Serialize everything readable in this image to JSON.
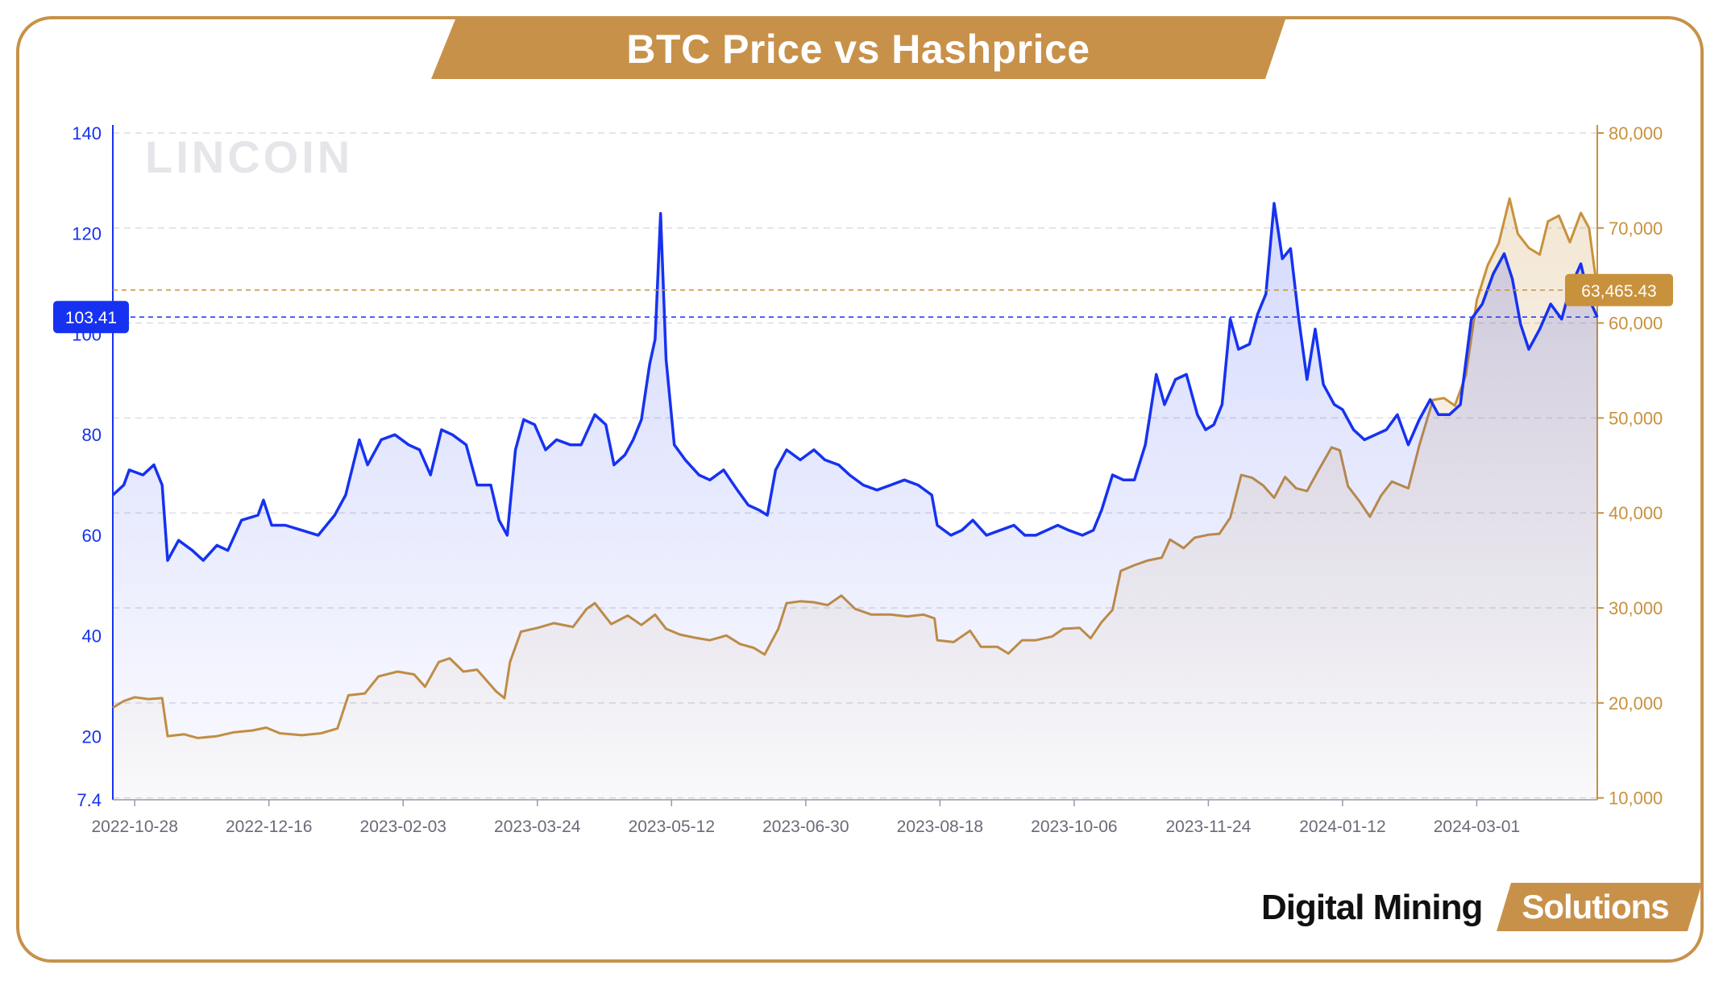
{
  "title": "BTC Price vs Hashprice",
  "watermark": "LINCOIN",
  "brand": {
    "main": "Digital Mining",
    "tag": "Solutions"
  },
  "colors": {
    "accent": "#c8914a",
    "blue": "#1632f0",
    "gold": "#c8913c"
  },
  "chart_data": {
    "type": "line",
    "x_ticks": [
      "2022-10-28",
      "2022-12-16",
      "2023-02-03",
      "2023-03-24",
      "2023-05-12",
      "2023-06-30",
      "2023-08-18",
      "2023-10-06",
      "2023-11-24",
      "2024-01-12",
      "2024-03-01"
    ],
    "x_range": [
      "2022-10-20",
      "2024-04-14"
    ],
    "y_left": {
      "ticks": [
        "140",
        "120",
        "100",
        "80",
        "60",
        "40",
        "20",
        "7.4"
      ],
      "tick_values": [
        140,
        120,
        100,
        80,
        60,
        40,
        20,
        7.4
      ],
      "range": [
        7.4,
        140
      ]
    },
    "y_right": {
      "ticks": [
        "80,000",
        "70,000",
        "60,000",
        "50,000",
        "40,000",
        "30,000",
        "20,000",
        "10,000"
      ],
      "tick_values": [
        80000,
        70000,
        60000,
        50000,
        40000,
        30000,
        20000,
        10000
      ],
      "range": [
        9800,
        80000
      ]
    },
    "grid": true,
    "series": [
      {
        "axis": "left",
        "color": "#1632f0",
        "last_value_label": "103.41",
        "last_value": 103.41,
        "points": [
          [
            "2022-10-20",
            68
          ],
          [
            "2022-10-24",
            70
          ],
          [
            "2022-10-26",
            73
          ],
          [
            "2022-10-31",
            72
          ],
          [
            "2022-11-04",
            74
          ],
          [
            "2022-11-07",
            70
          ],
          [
            "2022-11-09",
            55
          ],
          [
            "2022-11-13",
            59
          ],
          [
            "2022-11-18",
            57
          ],
          [
            "2022-11-22",
            55
          ],
          [
            "2022-11-27",
            58
          ],
          [
            "2022-12-01",
            57
          ],
          [
            "2022-12-06",
            63
          ],
          [
            "2022-12-12",
            64
          ],
          [
            "2022-12-14",
            67
          ],
          [
            "2022-12-17",
            62
          ],
          [
            "2022-12-22",
            62
          ],
          [
            "2022-12-28",
            61
          ],
          [
            "2023-01-03",
            60
          ],
          [
            "2023-01-09",
            64
          ],
          [
            "2023-01-13",
            68
          ],
          [
            "2023-01-18",
            79
          ],
          [
            "2023-01-21",
            74
          ],
          [
            "2023-01-26",
            79
          ],
          [
            "2023-01-31",
            80
          ],
          [
            "2023-02-05",
            78
          ],
          [
            "2023-02-09",
            77
          ],
          [
            "2023-02-13",
            72
          ],
          [
            "2023-02-17",
            81
          ],
          [
            "2023-02-21",
            80
          ],
          [
            "2023-02-26",
            78
          ],
          [
            "2023-03-02",
            70
          ],
          [
            "2023-03-07",
            70
          ],
          [
            "2023-03-10",
            63
          ],
          [
            "2023-03-13",
            60
          ],
          [
            "2023-03-16",
            77
          ],
          [
            "2023-03-19",
            83
          ],
          [
            "2023-03-23",
            82
          ],
          [
            "2023-03-27",
            77
          ],
          [
            "2023-03-31",
            79
          ],
          [
            "2023-04-05",
            78
          ],
          [
            "2023-04-09",
            78
          ],
          [
            "2023-04-14",
            84
          ],
          [
            "2023-04-18",
            82
          ],
          [
            "2023-04-21",
            74
          ],
          [
            "2023-04-25",
            76
          ],
          [
            "2023-04-28",
            79
          ],
          [
            "2023-05-01",
            83
          ],
          [
            "2023-05-04",
            94
          ],
          [
            "2023-05-06",
            99
          ],
          [
            "2023-05-08",
            124
          ],
          [
            "2023-05-10",
            95
          ],
          [
            "2023-05-13",
            78
          ],
          [
            "2023-05-17",
            75
          ],
          [
            "2023-05-22",
            72
          ],
          [
            "2023-05-26",
            71
          ],
          [
            "2023-05-31",
            73
          ],
          [
            "2023-06-05",
            69
          ],
          [
            "2023-06-09",
            66
          ],
          [
            "2023-06-13",
            65
          ],
          [
            "2023-06-16",
            64
          ],
          [
            "2023-06-19",
            73
          ],
          [
            "2023-06-23",
            77
          ],
          [
            "2023-06-28",
            75
          ],
          [
            "2023-07-03",
            77
          ],
          [
            "2023-07-07",
            75
          ],
          [
            "2023-07-12",
            74
          ],
          [
            "2023-07-16",
            72
          ],
          [
            "2023-07-21",
            70
          ],
          [
            "2023-07-26",
            69
          ],
          [
            "2023-07-31",
            70
          ],
          [
            "2023-08-05",
            71
          ],
          [
            "2023-08-10",
            70
          ],
          [
            "2023-08-15",
            68
          ],
          [
            "2023-08-17",
            62
          ],
          [
            "2023-08-22",
            60
          ],
          [
            "2023-08-26",
            61
          ],
          [
            "2023-08-30",
            63
          ],
          [
            "2023-09-04",
            60
          ],
          [
            "2023-09-09",
            61
          ],
          [
            "2023-09-14",
            62
          ],
          [
            "2023-09-18",
            60
          ],
          [
            "2023-09-22",
            60
          ],
          [
            "2023-09-26",
            61
          ],
          [
            "2023-09-30",
            62
          ],
          [
            "2023-10-04",
            61
          ],
          [
            "2023-10-09",
            60
          ],
          [
            "2023-10-13",
            61
          ],
          [
            "2023-10-16",
            65
          ],
          [
            "2023-10-20",
            72
          ],
          [
            "2023-10-24",
            71
          ],
          [
            "2023-10-28",
            71
          ],
          [
            "2023-11-01",
            78
          ],
          [
            "2023-11-05",
            92
          ],
          [
            "2023-11-08",
            86
          ],
          [
            "2023-11-12",
            91
          ],
          [
            "2023-11-16",
            92
          ],
          [
            "2023-11-20",
            84
          ],
          [
            "2023-11-23",
            81
          ],
          [
            "2023-11-26",
            82
          ],
          [
            "2023-11-29",
            86
          ],
          [
            "2023-12-02",
            103
          ],
          [
            "2023-12-05",
            97
          ],
          [
            "2023-12-09",
            98
          ],
          [
            "2023-12-12",
            104
          ],
          [
            "2023-12-15",
            108
          ],
          [
            "2023-12-18",
            126
          ],
          [
            "2023-12-21",
            115
          ],
          [
            "2023-12-24",
            117
          ],
          [
            "2023-12-27",
            103
          ],
          [
            "2023-12-30",
            91
          ],
          [
            "2024-01-02",
            101
          ],
          [
            "2024-01-05",
            90
          ],
          [
            "2024-01-09",
            86
          ],
          [
            "2024-01-12",
            85
          ],
          [
            "2024-01-16",
            81
          ],
          [
            "2024-01-20",
            79
          ],
          [
            "2024-01-24",
            80
          ],
          [
            "2024-01-28",
            81
          ],
          [
            "2024-02-01",
            84
          ],
          [
            "2024-02-05",
            78
          ],
          [
            "2024-02-09",
            83
          ],
          [
            "2024-02-13",
            87
          ],
          [
            "2024-02-16",
            84
          ],
          [
            "2024-02-20",
            84
          ],
          [
            "2024-02-24",
            86
          ],
          [
            "2024-02-28",
            103
          ],
          [
            "2024-03-03",
            106
          ],
          [
            "2024-03-07",
            112
          ],
          [
            "2024-03-11",
            116
          ],
          [
            "2024-03-14",
            111
          ],
          [
            "2024-03-17",
            102
          ],
          [
            "2024-03-20",
            97
          ],
          [
            "2024-03-24",
            101
          ],
          [
            "2024-03-28",
            106
          ],
          [
            "2024-04-01",
            103
          ],
          [
            "2024-04-04",
            109
          ],
          [
            "2024-04-08",
            114
          ],
          [
            "2024-04-11",
            107
          ],
          [
            "2024-04-14",
            103.41
          ]
        ]
      },
      {
        "axis": "right",
        "color": "#c8913c",
        "last_value_label": "63,465.43",
        "last_value": 63465.43,
        "points": [
          [
            "2022-10-20",
            19500
          ],
          [
            "2022-10-24",
            20200
          ],
          [
            "2022-10-28",
            20600
          ],
          [
            "2022-11-02",
            20400
          ],
          [
            "2022-11-07",
            20500
          ],
          [
            "2022-11-09",
            16500
          ],
          [
            "2022-11-15",
            16700
          ],
          [
            "2022-11-20",
            16300
          ],
          [
            "2022-11-27",
            16500
          ],
          [
            "2022-12-03",
            16900
          ],
          [
            "2022-12-10",
            17100
          ],
          [
            "2022-12-15",
            17400
          ],
          [
            "2022-12-20",
            16800
          ],
          [
            "2022-12-28",
            16600
          ],
          [
            "2023-01-04",
            16800
          ],
          [
            "2023-01-10",
            17300
          ],
          [
            "2023-01-14",
            20800
          ],
          [
            "2023-01-20",
            21000
          ],
          [
            "2023-01-25",
            22800
          ],
          [
            "2023-02-01",
            23300
          ],
          [
            "2023-02-07",
            23000
          ],
          [
            "2023-02-11",
            21700
          ],
          [
            "2023-02-16",
            24300
          ],
          [
            "2023-02-20",
            24700
          ],
          [
            "2023-02-25",
            23300
          ],
          [
            "2023-03-02",
            23500
          ],
          [
            "2023-03-09",
            21200
          ],
          [
            "2023-03-12",
            20500
          ],
          [
            "2023-03-14",
            24300
          ],
          [
            "2023-03-18",
            27500
          ],
          [
            "2023-03-24",
            27900
          ],
          [
            "2023-03-30",
            28400
          ],
          [
            "2023-04-06",
            28000
          ],
          [
            "2023-04-11",
            29900
          ],
          [
            "2023-04-14",
            30500
          ],
          [
            "2023-04-20",
            28300
          ],
          [
            "2023-04-26",
            29200
          ],
          [
            "2023-05-01",
            28200
          ],
          [
            "2023-05-06",
            29300
          ],
          [
            "2023-05-10",
            27800
          ],
          [
            "2023-05-15",
            27200
          ],
          [
            "2023-05-20",
            26900
          ],
          [
            "2023-05-26",
            26600
          ],
          [
            "2023-06-01",
            27100
          ],
          [
            "2023-06-06",
            26200
          ],
          [
            "2023-06-11",
            25800
          ],
          [
            "2023-06-15",
            25100
          ],
          [
            "2023-06-20",
            27800
          ],
          [
            "2023-06-23",
            30500
          ],
          [
            "2023-06-28",
            30700
          ],
          [
            "2023-07-03",
            30600
          ],
          [
            "2023-07-08",
            30300
          ],
          [
            "2023-07-13",
            31300
          ],
          [
            "2023-07-18",
            29900
          ],
          [
            "2023-07-24",
            29300
          ],
          [
            "2023-07-31",
            29300
          ],
          [
            "2023-08-06",
            29100
          ],
          [
            "2023-08-12",
            29300
          ],
          [
            "2023-08-16",
            28900
          ],
          [
            "2023-08-17",
            26600
          ],
          [
            "2023-08-23",
            26400
          ],
          [
            "2023-08-29",
            27600
          ],
          [
            "2023-09-02",
            25900
          ],
          [
            "2023-09-08",
            25900
          ],
          [
            "2023-09-12",
            25200
          ],
          [
            "2023-09-17",
            26600
          ],
          [
            "2023-09-22",
            26600
          ],
          [
            "2023-09-28",
            27000
          ],
          [
            "2023-10-02",
            27800
          ],
          [
            "2023-10-08",
            27900
          ],
          [
            "2023-10-12",
            26800
          ],
          [
            "2023-10-16",
            28500
          ],
          [
            "2023-10-20",
            29800
          ],
          [
            "2023-10-23",
            33900
          ],
          [
            "2023-10-28",
            34500
          ],
          [
            "2023-11-02",
            35000
          ],
          [
            "2023-11-07",
            35300
          ],
          [
            "2023-11-10",
            37200
          ],
          [
            "2023-11-15",
            36300
          ],
          [
            "2023-11-19",
            37400
          ],
          [
            "2023-11-24",
            37700
          ],
          [
            "2023-11-28",
            37800
          ],
          [
            "2023-12-02",
            39500
          ],
          [
            "2023-12-06",
            44000
          ],
          [
            "2023-12-10",
            43700
          ],
          [
            "2023-12-14",
            42900
          ],
          [
            "2023-12-18",
            41600
          ],
          [
            "2023-12-22",
            43800
          ],
          [
            "2023-12-26",
            42600
          ],
          [
            "2023-12-30",
            42300
          ],
          [
            "2024-01-03",
            44400
          ],
          [
            "2024-01-08",
            46900
          ],
          [
            "2024-01-11",
            46600
          ],
          [
            "2024-01-14",
            42800
          ],
          [
            "2024-01-18",
            41300
          ],
          [
            "2024-01-22",
            39600
          ],
          [
            "2024-01-26",
            41800
          ],
          [
            "2024-01-30",
            43300
          ],
          [
            "2024-02-05",
            42600
          ],
          [
            "2024-02-09",
            47100
          ],
          [
            "2024-02-14",
            51900
          ],
          [
            "2024-02-18",
            52100
          ],
          [
            "2024-02-22",
            51300
          ],
          [
            "2024-02-26",
            54500
          ],
          [
            "2024-03-01",
            62400
          ],
          [
            "2024-03-05",
            66100
          ],
          [
            "2024-03-09",
            68400
          ],
          [
            "2024-03-13",
            73100
          ],
          [
            "2024-03-16",
            69400
          ],
          [
            "2024-03-20",
            67900
          ],
          [
            "2024-03-24",
            67200
          ],
          [
            "2024-03-27",
            70700
          ],
          [
            "2024-03-31",
            71300
          ],
          [
            "2024-04-04",
            68500
          ],
          [
            "2024-04-08",
            71600
          ],
          [
            "2024-04-11",
            70000
          ],
          [
            "2024-04-14",
            63465.43
          ]
        ]
      }
    ]
  }
}
